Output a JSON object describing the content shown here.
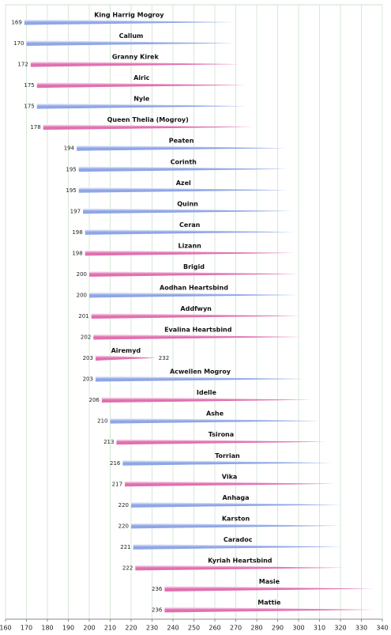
{
  "chart_data": {
    "type": "timeline",
    "categories": [
      "King Harrig Mogroy",
      "Callum",
      "Granny Kirek",
      "Airic",
      "Nyle",
      "Queen Thelia (Mogroy)",
      "Peaten",
      "Corinth",
      "Azel",
      "Quinn",
      "Ceran",
      "Lizann",
      "Brigid",
      "Aodhan Heartsbind",
      "Addfwyn",
      "Evalina Heartsbind",
      "Airemyd",
      "Acwellen Mogroy",
      "Idelle",
      "Ashe",
      "Tsirona",
      "Torrian",
      "Vika",
      "Anhaga",
      "Karston",
      "Caradoc",
      "Kyriah Heartsbind",
      "Masie",
      "Mattie"
    ],
    "start": [
      169,
      170,
      172,
      175,
      175,
      178,
      194,
      195,
      195,
      197,
      198,
      198,
      200,
      200,
      201,
      202,
      203,
      203,
      206,
      210,
      213,
      216,
      217,
      220,
      220,
      221,
      222,
      236,
      236
    ],
    "end": [
      269,
      270,
      272,
      275,
      275,
      278,
      294,
      295,
      295,
      297,
      298,
      298,
      300,
      300,
      301,
      302,
      232,
      303,
      306,
      310,
      313,
      316,
      317,
      320,
      320,
      321,
      322,
      336,
      336
    ],
    "end_labels": [
      null,
      null,
      null,
      null,
      null,
      null,
      null,
      null,
      null,
      null,
      null,
      null,
      null,
      null,
      null,
      null,
      "232",
      null,
      null,
      null,
      null,
      null,
      null,
      null,
      null,
      null,
      null,
      null,
      null
    ],
    "colors": [
      "#8fa6e6",
      "#8fa6e6",
      "#e070b0",
      "#e070b0",
      "#8fa6e6",
      "#e070b0",
      "#8fa6e6",
      "#8fa6e6",
      "#8fa6e6",
      "#8fa6e6",
      "#8fa6e6",
      "#e070b0",
      "#e070b0",
      "#8fa6e6",
      "#e070b0",
      "#e070b0",
      "#e070b0",
      "#8fa6e6",
      "#e070b0",
      "#8fa6e6",
      "#e070b0",
      "#8fa6e6",
      "#e070b0",
      "#8fa6e6",
      "#8fa6e6",
      "#8fa6e6",
      "#e070b0",
      "#e070b0",
      "#e070b0"
    ],
    "xlim": [
      160,
      340
    ],
    "xticks": [
      160,
      170,
      180,
      190,
      200,
      210,
      220,
      230,
      240,
      250,
      260,
      270,
      280,
      290,
      300,
      310,
      320,
      330,
      340
    ],
    "grid": true
  }
}
